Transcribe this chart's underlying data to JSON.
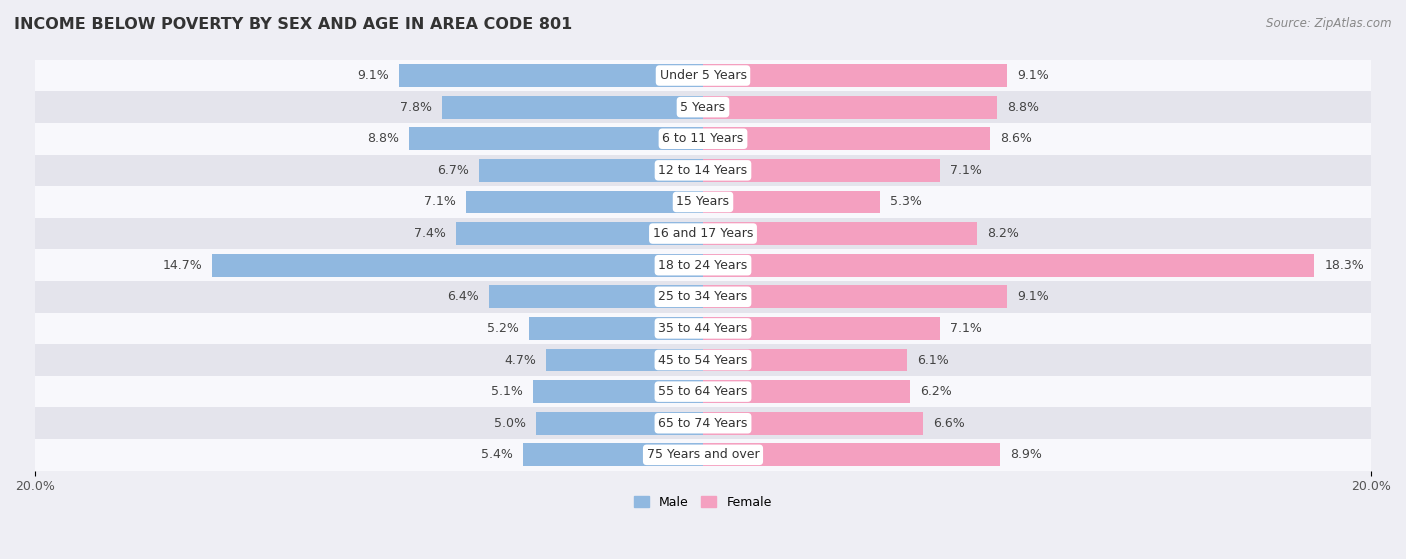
{
  "title": "INCOME BELOW POVERTY BY SEX AND AGE IN AREA CODE 801",
  "source": "Source: ZipAtlas.com",
  "categories": [
    "Under 5 Years",
    "5 Years",
    "6 to 11 Years",
    "12 to 14 Years",
    "15 Years",
    "16 and 17 Years",
    "18 to 24 Years",
    "25 to 34 Years",
    "35 to 44 Years",
    "45 to 54 Years",
    "55 to 64 Years",
    "65 to 74 Years",
    "75 Years and over"
  ],
  "male_values": [
    9.1,
    7.8,
    8.8,
    6.7,
    7.1,
    7.4,
    14.7,
    6.4,
    5.2,
    4.7,
    5.1,
    5.0,
    5.4
  ],
  "female_values": [
    9.1,
    8.8,
    8.6,
    7.1,
    5.3,
    8.2,
    18.3,
    9.1,
    7.1,
    6.1,
    6.2,
    6.6,
    8.9
  ],
  "male_color": "#90b8e0",
  "female_color": "#f4a0c0",
  "male_color_dark": "#5a8fc8",
  "female_color_dark": "#f06090",
  "male_label": "Male",
  "female_label": "Female",
  "xlim": 20.0,
  "bar_height": 0.72,
  "bg_color": "#eeeef4",
  "row_color_light": "#f8f8fc",
  "row_color_dark": "#e4e4ec",
  "title_fontsize": 11.5,
  "label_fontsize": 9.0,
  "value_fontsize": 9.0,
  "tick_fontsize": 9,
  "source_fontsize": 8.5
}
